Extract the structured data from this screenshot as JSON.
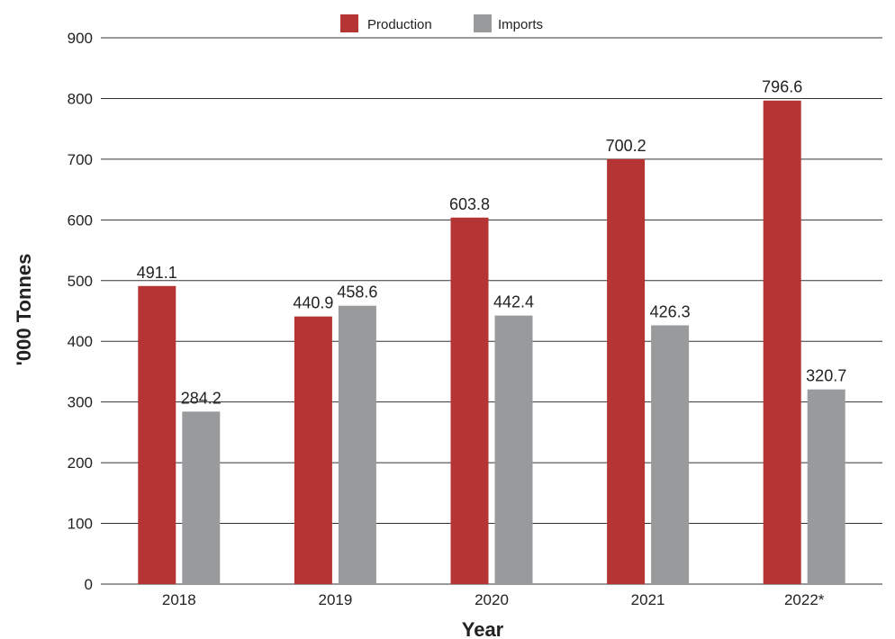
{
  "chart_data": {
    "type": "bar",
    "categories": [
      "2018",
      "2019",
      "2020",
      "2021",
      "2022*"
    ],
    "series": [
      {
        "name": "Production",
        "values": [
          491.1,
          440.9,
          603.8,
          700.2,
          796.6
        ],
        "color": "#b53535"
      },
      {
        "name": "Imports",
        "values": [
          284.2,
          458.6,
          442.4,
          426.3,
          320.7
        ],
        "color": "#999a9c"
      }
    ],
    "title": "",
    "xlabel": "Year",
    "ylabel": "'000 Tonnes",
    "ylim": [
      0,
      900
    ],
    "yticks": [
      0,
      100,
      200,
      300,
      400,
      500,
      600,
      700,
      800,
      900
    ],
    "grid": true,
    "legend_position": "top-center"
  }
}
